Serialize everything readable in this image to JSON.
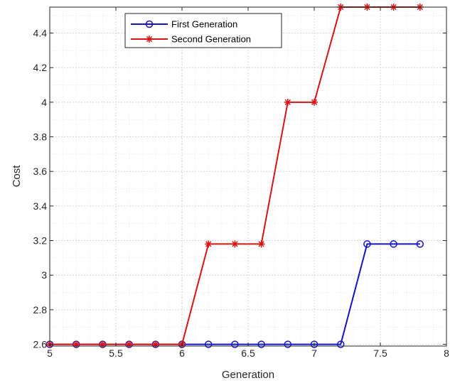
{
  "chart_data": {
    "type": "line",
    "title": "",
    "xlabel": "Generation",
    "ylabel": "Cost",
    "xlim": [
      5,
      8
    ],
    "ylim": [
      2.59,
      4.55
    ],
    "xticks": [
      5,
      5.5,
      6,
      6.5,
      7,
      7.5,
      8
    ],
    "xtick_labels": [
      "5",
      "5.5",
      "6",
      "6.5",
      "7",
      "7.5",
      "8"
    ],
    "yticks": [
      2.6,
      2.8,
      3,
      3.2,
      3.4,
      3.6,
      3.8,
      4,
      4.2,
      4.4
    ],
    "ytick_labels": [
      "2.6",
      "2.8",
      "3",
      "3.2",
      "3.4",
      "3.6",
      "3.8",
      "4",
      "4.2",
      "4.4"
    ],
    "grid": true,
    "minor_grid": true,
    "legend_position": "top-left",
    "series": [
      {
        "name": "First Generation",
        "color": "#1414c8",
        "marker": "circle",
        "x": [
          5.0,
          5.2,
          5.4,
          5.6,
          5.8,
          6.0,
          6.2,
          6.4,
          6.6,
          6.8,
          7.0,
          7.2,
          7.4,
          7.6,
          7.8
        ],
        "y": [
          2.6,
          2.6,
          2.6,
          2.6,
          2.6,
          2.6,
          2.6,
          2.6,
          2.6,
          2.6,
          2.6,
          2.6,
          3.18,
          3.18,
          3.18
        ]
      },
      {
        "name": "Second Generation",
        "color": "#d81414",
        "marker": "star",
        "x": [
          5.0,
          5.2,
          5.4,
          5.6,
          5.8,
          6.0,
          6.2,
          6.4,
          6.6,
          6.8,
          7.0,
          7.2,
          7.4,
          7.6,
          7.8
        ],
        "y": [
          2.6,
          2.6,
          2.6,
          2.6,
          2.6,
          2.6,
          3.18,
          3.18,
          3.18,
          4.0,
          4.0,
          4.55,
          4.55,
          4.55,
          4.55
        ]
      }
    ]
  }
}
